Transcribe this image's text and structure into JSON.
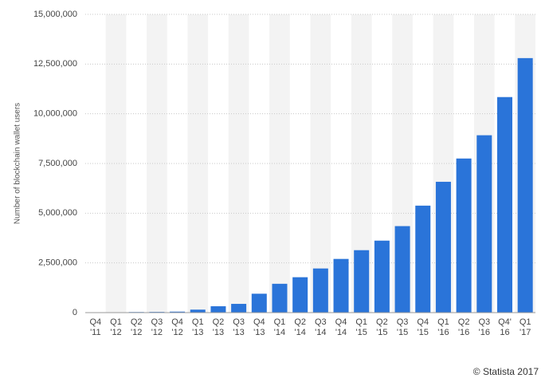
{
  "chart_data": {
    "type": "bar",
    "y_axis_label": "Number of blockchain wallet users",
    "credit": "© Statista 2017",
    "categories": [
      "Q4 '11",
      "Q1 '12",
      "Q2 '12",
      "Q3 '12",
      "Q4 '12",
      "Q1 '13",
      "Q2 '13",
      "Q3 '13",
      "Q4 '13",
      "Q1 '14",
      "Q2 '14",
      "Q3 '14",
      "Q4 '14",
      "Q1 '15",
      "Q2 '15",
      "Q3 '15",
      "Q4 '15",
      "Q1 '16",
      "Q2 '16",
      "Q3 '16",
      "Q4' 16",
      "Q1 '17"
    ],
    "values": [
      10000,
      20000,
      30000,
      35000,
      50000,
      150000,
      320000,
      440000,
      950000,
      1450000,
      1780000,
      2220000,
      2700000,
      3140000,
      3620000,
      4350000,
      5380000,
      6580000,
      7750000,
      8920000,
      10840000,
      12800000
    ],
    "color": "#2a74d9",
    "ylim": [
      0,
      15000000
    ],
    "yticks": [
      0,
      {
        "value": 2500000,
        "label": "2,500,000"
      },
      {
        "value": 5000000,
        "label": "5,000,000"
      },
      {
        "value": 7500000,
        "label": "7,500,000"
      },
      {
        "value": 10000000,
        "label": "10,000,000"
      },
      {
        "value": 12500000,
        "label": "12,500,000"
      },
      {
        "value": 15000000,
        "label": "15,000,000"
      }
    ],
    "grid": true
  }
}
